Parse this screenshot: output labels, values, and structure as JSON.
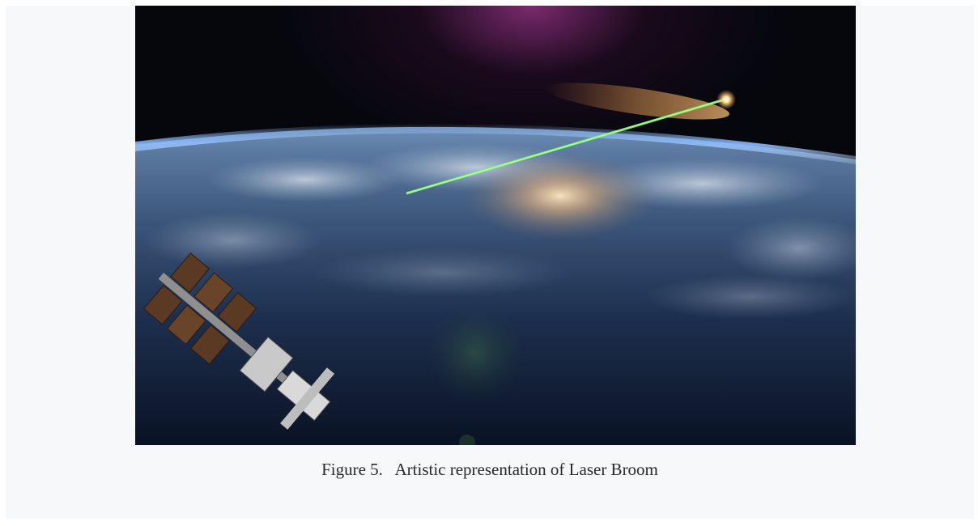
{
  "figure": {
    "caption": "Figure 5.   Artistic representation of Laser Broom",
    "image_icon": "earth-orbit-laser-illustration"
  },
  "colors": {
    "panel_background": "#f7f8fa",
    "laser": "#7dff6a",
    "space": "#05070d"
  }
}
